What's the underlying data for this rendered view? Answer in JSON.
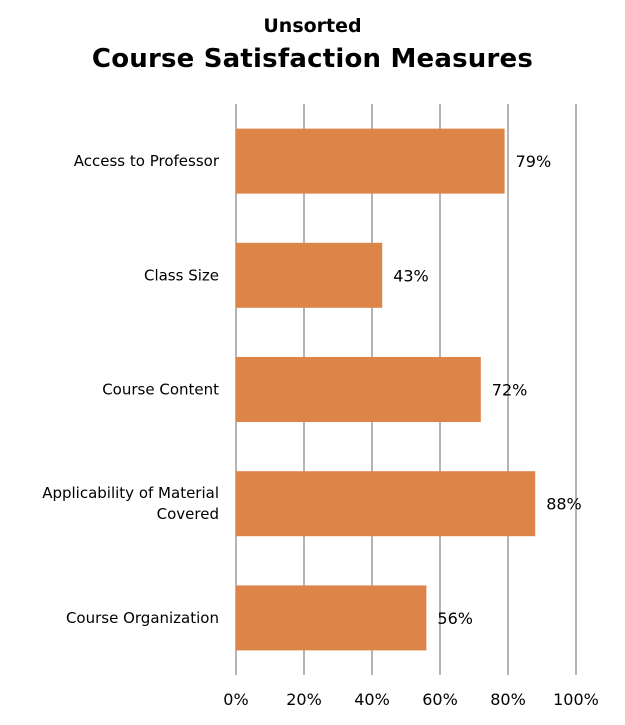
{
  "chart_data": {
    "type": "bar",
    "orientation": "horizontal",
    "subtitle": "Unsorted",
    "title": "Course Satisfaction Measures",
    "categories": [
      [
        "Access to Professor"
      ],
      [
        "Class Size"
      ],
      [
        "Course Content"
      ],
      [
        "Applicability of Material",
        "Covered"
      ],
      [
        "Course Organization"
      ]
    ],
    "values": [
      79,
      43,
      72,
      88,
      56
    ],
    "data_labels": [
      "79%",
      "43%",
      "72%",
      "88%",
      "56%"
    ],
    "x_ticks": [
      "0%",
      "20%",
      "40%",
      "60%",
      "80%",
      "100%"
    ],
    "xlim": [
      0,
      100
    ],
    "grid": true,
    "bar_color": "#DD8449"
  }
}
